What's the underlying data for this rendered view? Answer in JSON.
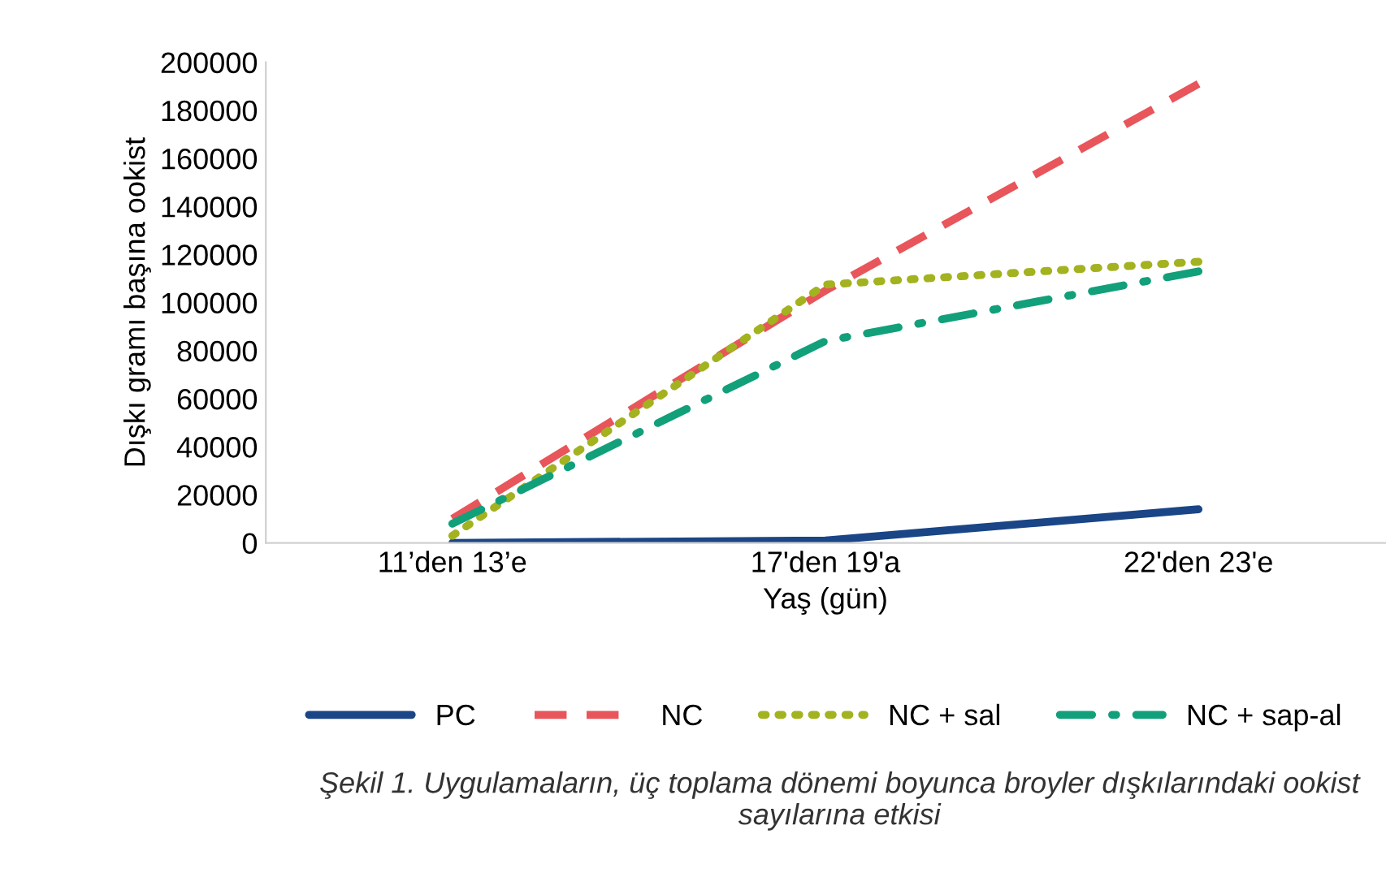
{
  "chart_data": {
    "type": "line",
    "xlabel": "Yaş (gün)",
    "ylabel": "Dışkı gramı başına ookist",
    "categories": [
      "11’den 13’e",
      "17'den 19'a",
      "22'den 23'e"
    ],
    "series": [
      {
        "name": "PC",
        "color": "#1a4586",
        "line_style": "solid",
        "values": [
          0,
          1000,
          14000
        ]
      },
      {
        "name": "NC",
        "color": "#e8555a",
        "line_style": "dashed",
        "values": [
          10000,
          105000,
          191000
        ]
      },
      {
        "name": "NC + sal",
        "color": "#a3b21f",
        "line_style": "dotted",
        "values": [
          3000,
          107500,
          117000
        ]
      },
      {
        "name": "NC + sap-al",
        "color": "#12a07a",
        "line_style": "dashdot",
        "values": [
          8000,
          84000,
          113000
        ]
      }
    ],
    "ylim": [
      0,
      200000
    ],
    "yticks": [
      0,
      20000,
      40000,
      60000,
      80000,
      100000,
      120000,
      140000,
      160000,
      180000,
      200000
    ],
    "grid": false,
    "legend": "bottom",
    "marker": "none",
    "annotations": [
      "Şekil 1. Uygulamaların, üç toplama dönemi boyunca broyler dışkılarındaki ookist sayılarına etkisi"
    ]
  }
}
